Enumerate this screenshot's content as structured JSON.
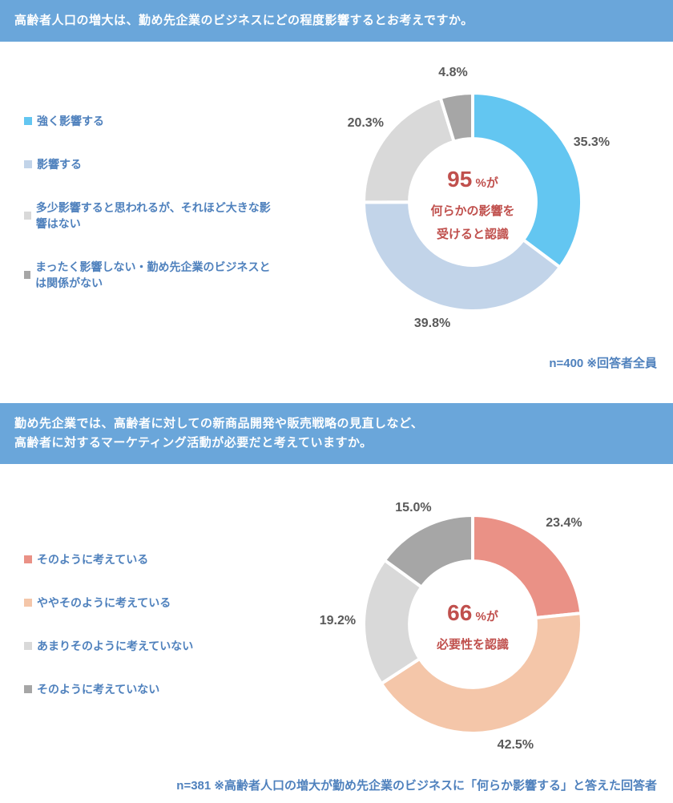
{
  "charts": [
    {
      "header_bg": "#6aa6da",
      "title": "高齢者人口の増大は、勤め先企業のビジネスにどの程度影響するとお考えですか。",
      "legend_text_color": "#4f81bd",
      "legend": [
        {
          "swatch": "#63c6f1",
          "label": "強く影響する"
        },
        {
          "swatch": "#c2d4e9",
          "label": "影響する"
        },
        {
          "swatch": "#d9d9d9",
          "label": "多少影響すると思われるが、それほど大きな影響はない"
        },
        {
          "swatch": "#a6a6a6",
          "label": "まったく影響しない・勤め先企業のビジネスとは関係がない"
        }
      ],
      "donut": {
        "size": 340,
        "inner_ratio": 0.58,
        "stroke": "#ffffff",
        "stroke_width": 4,
        "start_angle": -90,
        "slices": [
          {
            "value": 35.3,
            "color": "#63c6f1",
            "label": "35.3%",
            "label_r": 1.22
          },
          {
            "value": 39.8,
            "color": "#c2d4e9",
            "label": "39.8%",
            "label_r": 1.18
          },
          {
            "value": 20.3,
            "color": "#d9d9d9",
            "label": "20.3%",
            "label_r": 1.22
          },
          {
            "value": 4.8,
            "color": "#a6a6a6",
            "label": "4.8%",
            "label_r": 1.2
          }
        ],
        "center": {
          "color": "#c0504d",
          "big": "95",
          "pct_suffix": " %が",
          "lines": [
            "何らかの影響を",
            "受けると認識"
          ]
        }
      },
      "footnote": "n=400 ※回答者全員",
      "footnote_color": "#4f81bd"
    },
    {
      "header_bg": "#6aa6da",
      "title": "勤め先企業では、高齢者に対しての新商品開発や販売戦略の見直しなど、\n高齢者に対するマーケティング活動が必要だと考えていますか。",
      "legend_text_color": "#4f81bd",
      "legend": [
        {
          "swatch": "#ea9186",
          "label": "そのように考えている"
        },
        {
          "swatch": "#f4c6a9",
          "label": "ややそのように考えている"
        },
        {
          "swatch": "#d9d9d9",
          "label": "あまりそのように考えていない"
        },
        {
          "swatch": "#a6a6a6",
          "label": "そのように考えていない"
        }
      ],
      "donut": {
        "size": 340,
        "inner_ratio": 0.58,
        "stroke": "#ffffff",
        "stroke_width": 4,
        "start_angle": -90,
        "slices": [
          {
            "value": 23.4,
            "color": "#ea9186",
            "label": "23.4%",
            "label_r": 1.25
          },
          {
            "value": 42.5,
            "color": "#f4c6a9",
            "label": "42.5%",
            "label_r": 1.18
          },
          {
            "value": 19.2,
            "color": "#d9d9d9",
            "label": "19.2%",
            "label_r": 1.24
          },
          {
            "value": 15.0,
            "color": "#a6a6a6",
            "label": "15.0%",
            "label_r": 1.2
          }
        ],
        "center": {
          "color": "#c0504d",
          "big": "66",
          "pct_suffix": " %が",
          "lines": [
            "必要性を認識"
          ]
        }
      },
      "footnote": "n=381 ※高齢者人口の増大が勤め先企業のビジネスに「何らか影響する」と答えた回答者",
      "footnote_color": "#4f81bd"
    }
  ]
}
